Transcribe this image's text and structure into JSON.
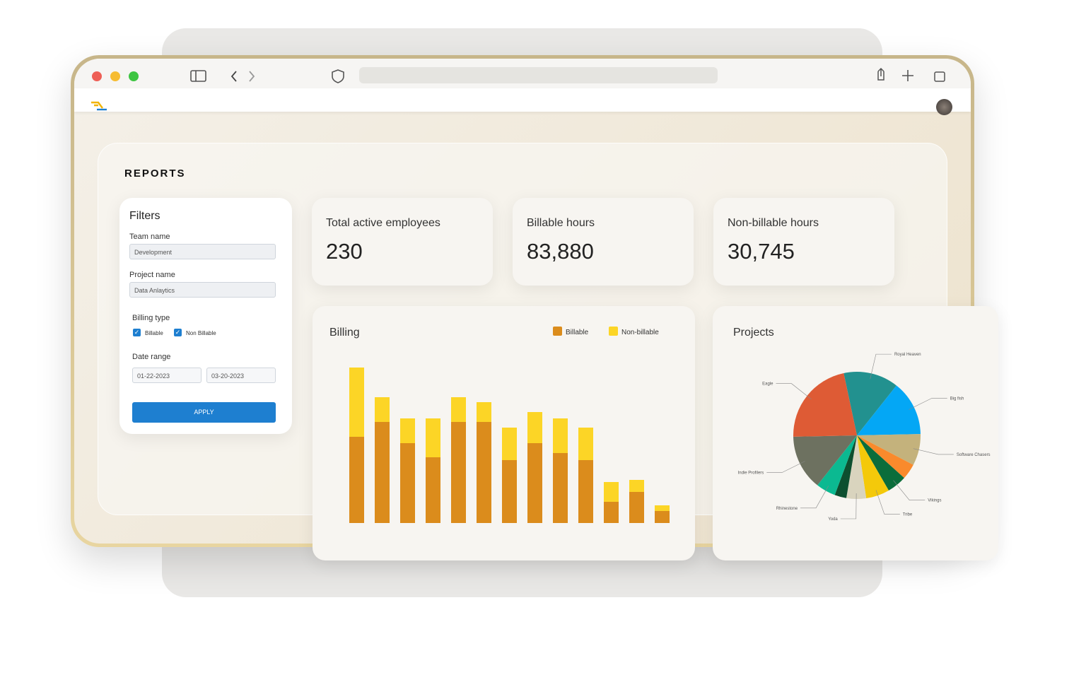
{
  "reports": {
    "title": "REPORTS"
  },
  "filters": {
    "title": "Filters",
    "team_label": "Team name",
    "team_value": "Development",
    "project_label": "Project name",
    "project_value": "Data Anlaytics",
    "billing_label": "Billing type",
    "billable": "Billable",
    "non_billable": "Non Billable",
    "date_label": "Date range",
    "date_from": "01-22-2023",
    "date_to": "03-20-2023",
    "apply": "APPLY"
  },
  "stats": [
    {
      "label": "Total active employees",
      "value": "230"
    },
    {
      "label": "Billable hours",
      "value": "83,880"
    },
    {
      "label": "Non-billable hours",
      "value": "30,745"
    }
  ],
  "chart_data": [
    {
      "type": "bar",
      "stacked": true,
      "title": "Billing",
      "ylim": [
        0,
        230
      ],
      "series": [
        {
          "name": "Billable",
          "color": "#db8c1c",
          "values": [
            122,
            143,
            113,
            93,
            143,
            143,
            89,
            113,
            99,
            89,
            30,
            44,
            17
          ]
        },
        {
          "name": "Non-billable",
          "color": "#fcd526",
          "values": [
            98,
            35,
            35,
            55,
            35,
            28,
            46,
            44,
            49,
            46,
            28,
            17,
            8
          ]
        }
      ]
    },
    {
      "type": "pie",
      "title": "Projects",
      "labels": [
        "Royal Heaven",
        "Big fish",
        "Software Chasers",
        null,
        "Vikings",
        "Tribe",
        "Yoda",
        null,
        "Rhinestone",
        "Indie Profilers",
        "Eagle"
      ],
      "values": [
        14,
        14,
        8,
        4,
        5,
        6,
        5,
        3,
        5,
        14,
        22
      ],
      "colors": [
        "#22918f",
        "#04a7f5",
        "#c4b27c",
        "#f98a2c",
        "#0b6d3b",
        "#f4c90a",
        "#d9d4be",
        "#0d4f2f",
        "#0bb991",
        "#6d7160",
        "#de5b35"
      ]
    }
  ]
}
